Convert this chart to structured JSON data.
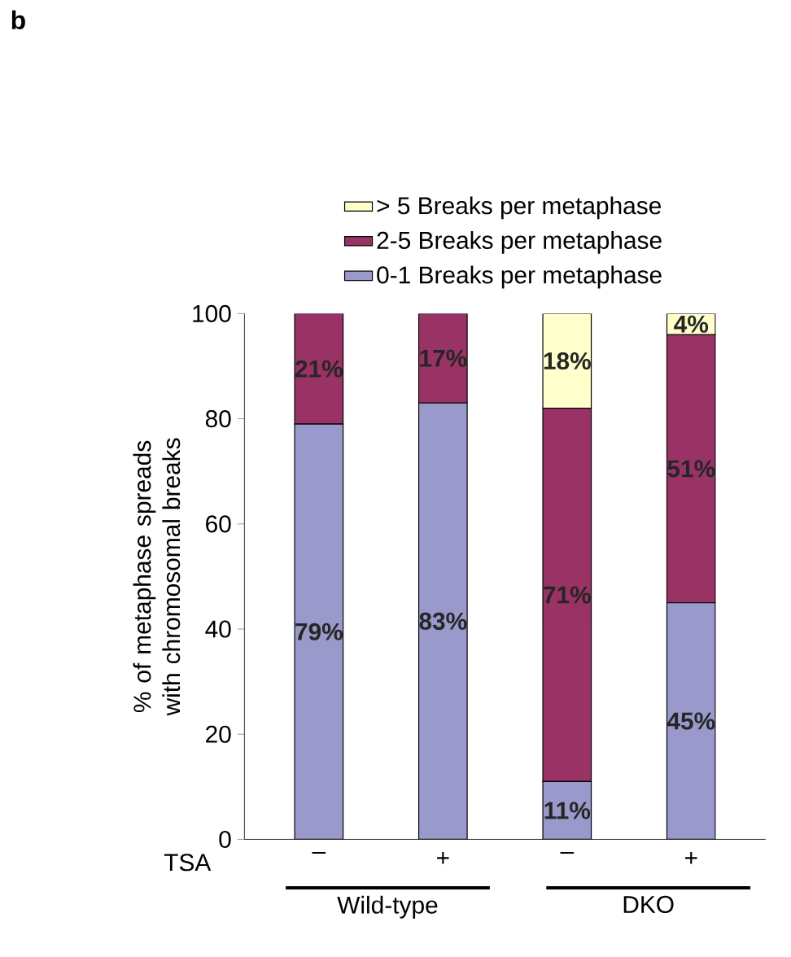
{
  "chart_data": {
    "type": "bar",
    "stacked": true,
    "categories": [
      "–",
      "+",
      "–",
      "+"
    ],
    "ylabel": "% of metaphase spreads with chromosomal breaks",
    "ylim": [
      0,
      100
    ],
    "yticks": [
      0,
      20,
      40,
      60,
      80,
      100
    ],
    "legend": "top",
    "series": [
      {
        "name": "0-1 Breaks per metaphase",
        "color": "#9999cc",
        "values": [
          79,
          83,
          11,
          45
        ],
        "value_labels": [
          "79%",
          "83%",
          "11%",
          "45%"
        ]
      },
      {
        "name": "2-5 Breaks per metaphase",
        "color": "#993366",
        "values": [
          21,
          17,
          71,
          51
        ],
        "value_labels": [
          "21%",
          "17%",
          "71%",
          "51%"
        ]
      },
      {
        "name": "> 5 Breaks per metaphase",
        "color": "#ffffcc",
        "values": [
          0,
          0,
          18,
          4
        ],
        "value_labels": [
          null,
          null,
          "18%",
          "4%"
        ]
      }
    ],
    "annotations": [
      "b",
      "TSA",
      "Wild-type",
      "DKO"
    ]
  }
}
